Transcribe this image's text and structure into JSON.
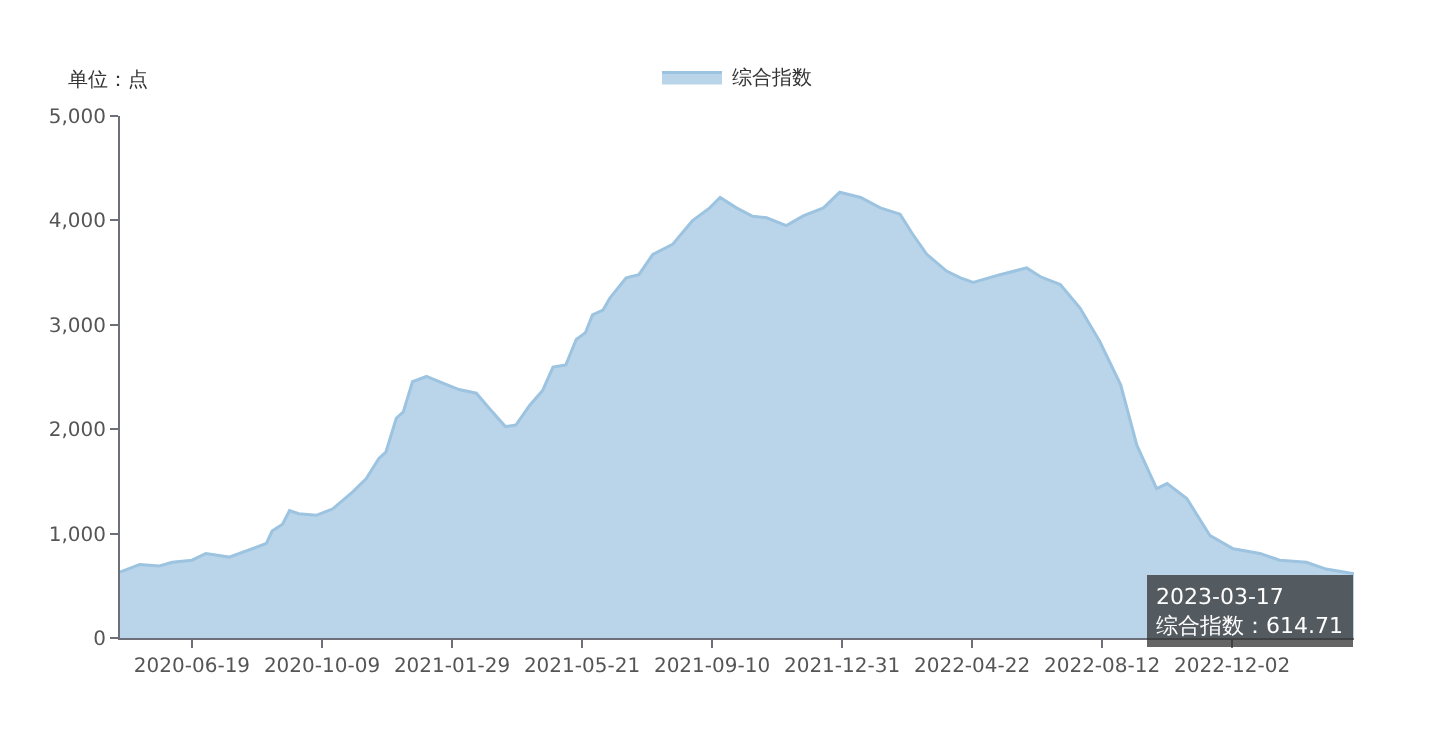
{
  "chart_data": {
    "type": "area",
    "ylabel": "单位：点",
    "legend": "top",
    "marker": "none",
    "line_style": "solid",
    "xlim": [
      "2020-04-18",
      "2023-03-17"
    ],
    "ylim": [
      0,
      5000
    ],
    "xticks": [
      {
        "value": "2020-06-19",
        "label": "2020-06-19"
      },
      {
        "value": "2020-10-09",
        "label": "2020-10-09"
      },
      {
        "value": "2021-01-29",
        "label": "2021-01-29"
      },
      {
        "value": "2021-05-21",
        "label": "2021-05-21"
      },
      {
        "value": "2021-09-10",
        "label": "2021-09-10"
      },
      {
        "value": "2021-12-31",
        "label": "2021-12-31"
      },
      {
        "value": "2022-04-22",
        "label": "2022-04-22"
      },
      {
        "value": "2022-08-12",
        "label": "2022-08-12"
      },
      {
        "value": "2022-12-02",
        "label": "2022-12-02"
      }
    ],
    "yticks": [
      0,
      {
        "value": 1000,
        "label": "1,000"
      },
      {
        "value": 2000,
        "label": "2,000"
      },
      {
        "value": 3000,
        "label": "3,000"
      },
      {
        "value": 4000,
        "label": "4,000"
      },
      {
        "value": 5000,
        "label": "5,000"
      }
    ],
    "annotations": [
      {
        "text": "2023-03-17\n综合指数：614.71",
        "x": "2023-03-17",
        "y": 614.71
      }
    ],
    "series": [
      {
        "name": "综合指数",
        "color": "#9cc3e0",
        "x": [
          "2020-04-18",
          "2020-05-05",
          "2020-05-22",
          "2020-06-02",
          "2020-06-19",
          "2020-07-01",
          "2020-07-21",
          "2020-08-10",
          "2020-08-22",
          "2020-08-27",
          "2020-09-05",
          "2020-09-11",
          "2020-09-19",
          "2020-10-04",
          "2020-10-18",
          "2020-11-04",
          "2020-11-16",
          "2020-11-27",
          "2020-12-03",
          "2020-12-12",
          "2020-12-18",
          "2020-12-26",
          "2021-01-07",
          "2021-01-18",
          "2021-02-04",
          "2021-02-19",
          "2021-03-02",
          "2021-03-16",
          "2021-03-25",
          "2021-04-06",
          "2021-04-17",
          "2021-04-26",
          "2021-05-07",
          "2021-05-16",
          "2021-05-24",
          "2021-05-30",
          "2021-06-08",
          "2021-06-14",
          "2021-06-28",
          "2021-07-09",
          "2021-07-21",
          "2021-08-07",
          "2021-08-24",
          "2021-09-08",
          "2021-09-17",
          "2021-10-01",
          "2021-10-15",
          "2021-10-27",
          "2021-11-13",
          "2021-11-28",
          "2021-12-15",
          "2021-12-29",
          "2022-01-16",
          "2022-02-02",
          "2022-02-19",
          "2022-03-02",
          "2022-03-14",
          "2022-03-31",
          "2022-04-12",
          "2022-04-23",
          "2022-05-16",
          "2022-06-08",
          "2022-06-20",
          "2022-07-07",
          "2022-07-24",
          "2022-08-10",
          "2022-08-28",
          "2022-09-11",
          "2022-09-28",
          "2022-10-07",
          "2022-10-24",
          "2022-11-13",
          "2022-12-03",
          "2022-12-26",
          "2023-01-12",
          "2023-02-04",
          "2023-02-21",
          "2023-03-17"
        ],
        "values": [
          630,
          705,
          690,
          725,
          745,
          810,
          775,
          855,
          905,
          1025,
          1090,
          1220,
          1190,
          1175,
          1235,
          1395,
          1525,
          1720,
          1780,
          2105,
          2165,
          2455,
          2505,
          2455,
          2380,
          2345,
          2200,
          2025,
          2040,
          2230,
          2370,
          2595,
          2615,
          2860,
          2925,
          3095,
          3140,
          3255,
          3450,
          3480,
          3675,
          3770,
          3995,
          4120,
          4220,
          4120,
          4040,
          4025,
          3950,
          4045,
          4120,
          4270,
          4220,
          4120,
          4060,
          3865,
          3675,
          3515,
          3450,
          3405,
          3480,
          3545,
          3460,
          3385,
          3160,
          2840,
          2425,
          1845,
          1430,
          1480,
          1335,
          980,
          855,
          810,
          745,
          725,
          660,
          614.71
        ]
      }
    ]
  }
}
